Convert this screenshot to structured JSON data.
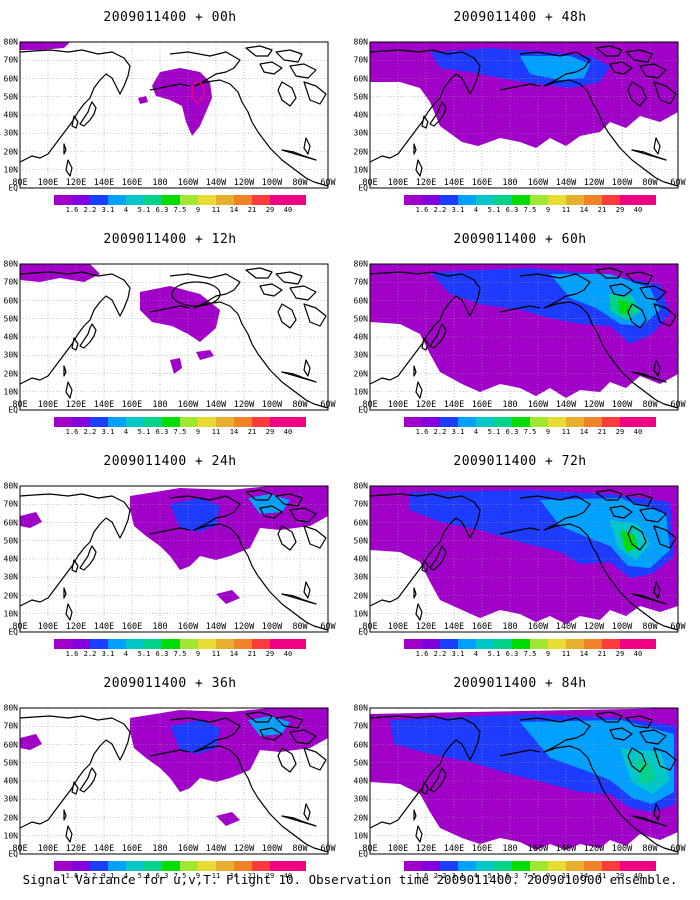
{
  "panels": [
    {
      "title": "2009011400 + 00h",
      "level": 0
    },
    {
      "title": "2009011400 + 48h",
      "level": 3
    },
    {
      "title": "2009011400 + 12h",
      "level": 1
    },
    {
      "title": "2009011400 + 60h",
      "level": 4
    },
    {
      "title": "2009011400 + 24h",
      "level": 2
    },
    {
      "title": "2009011400 + 72h",
      "level": 5
    },
    {
      "title": "2009011400 + 36h",
      "level": 2
    },
    {
      "title": "2009011400 + 84h",
      "level": 6
    }
  ],
  "lon_labels": [
    "80E",
    "100E",
    "120E",
    "140E",
    "160E",
    "180",
    "160W",
    "140W",
    "120W",
    "100W",
    "80W",
    "60W"
  ],
  "lat_labels": [
    "80N",
    "70N",
    "60N",
    "50N",
    "40N",
    "30N",
    "20N",
    "10N",
    "EQ"
  ],
  "colorbar": {
    "labels": [
      "1.6",
      "2.2",
      "3.1",
      "4",
      "5.1",
      "6.3",
      "7.5",
      "9",
      "11",
      "14",
      "21",
      "29",
      "40"
    ],
    "colors": [
      "#a000c8",
      "#8200dc",
      "#1e3cff",
      "#00a0ff",
      "#00c8c8",
      "#00d28c",
      "#00dc00",
      "#a0e632",
      "#e6dc32",
      "#e6af2d",
      "#f08228",
      "#fa3c3c",
      "#f00082"
    ]
  },
  "caption": "Signal Variance for u,v,T. Flight 10. Observation time 2009011400. 2009010900 ensemble."
}
